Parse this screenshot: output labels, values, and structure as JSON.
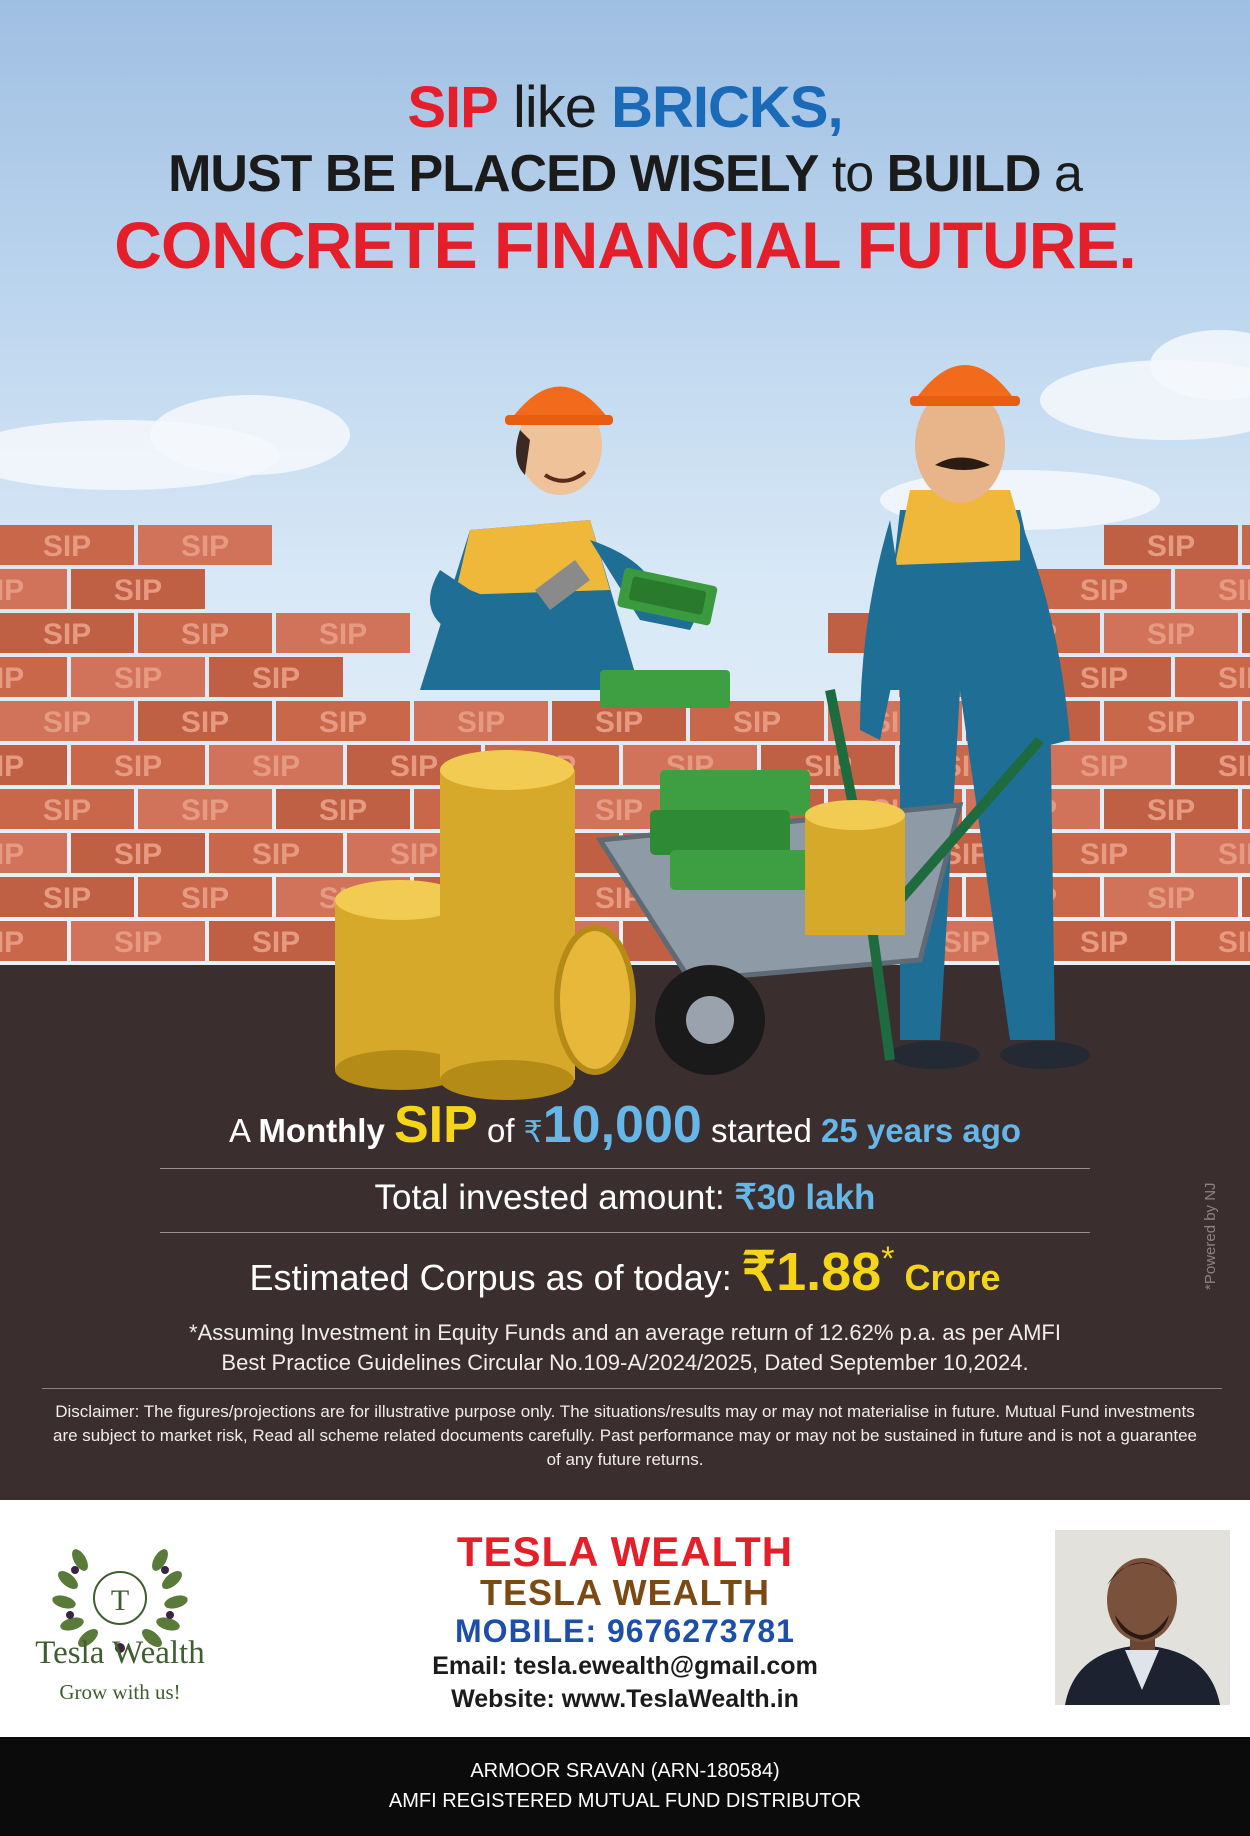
{
  "headline": {
    "l1_a": "SIP",
    "l1_b": " like ",
    "l1_c": "BRICKS,",
    "l2_a": "MUST BE PLACED WISELY",
    "l2_b": " to ",
    "l2_c": "BUILD",
    "l2_d": " a",
    "l3": "CONCRETE FINANCIAL FUTURE."
  },
  "brick_label": "SIP",
  "info": {
    "l1_a": "A ",
    "l1_b": "Monthly",
    "l1_c": "SIP",
    "l1_d": " of ",
    "l1_rs": "₹",
    "l1_amt": "10,000",
    "l1_e": " started ",
    "l1_f": "25 years ago",
    "l2_a": "Total invested amount: ",
    "l2_b": "₹30 lakh",
    "l3_a": "Estimated Corpus as of today: ",
    "l3_b": "₹1.88",
    "l3_star": "*",
    "l3_c": " Crore",
    "assume1": "*Assuming Investment in Equity Funds and an average return of 12.62% p.a. as per AMFI",
    "assume2": "Best Practice  Guidelines Circular No.109-A/2024/2025, Dated September 10,2024.",
    "disclaimer": "Disclaimer: The figures/projections are for illustrative purpose only. The situations/results may or may not materialise in future. Mutual Fund investments are subject to market risk, Read all scheme related documents carefully. Past performance may or may not be sustained in future and is not a guarantee of any future returns.",
    "powered": "*Powered by NJ"
  },
  "logo": {
    "letter": "T",
    "name": "Tesla Wealth",
    "tagline": "Grow with us!"
  },
  "contact": {
    "name1": "TESLA WEALTH",
    "name2": "TESLA WEALTH",
    "mobile": "MOBILE: 9676273781",
    "email": "Email: tesla.ewealth@gmail.com",
    "website": "Website: www.TeslaWealth.in"
  },
  "footer": {
    "line1": "ARMOOR SRAVAN (ARN-180584)",
    "line2": "AMFI REGISTERED MUTUAL FUND DISTRIBUTOR"
  },
  "colors": {
    "accent_red": "#e41f2a",
    "accent_blue": "#1a6ab8",
    "panel_bg": "#3b2e2f",
    "highlight_yellow": "#f5d518",
    "highlight_cyan": "#67b6e8"
  }
}
